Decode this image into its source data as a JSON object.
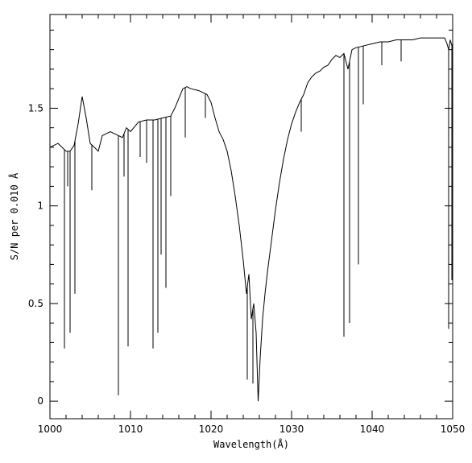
{
  "chart_data": {
    "type": "line",
    "title": "",
    "xlabel": "Wavelength(Å)",
    "ylabel": "S/N per 0.010 Å",
    "xlim": [
      1000,
      1050
    ],
    "ylim": [
      -0.09,
      1.98
    ],
    "x_ticks_major": [
      1000,
      1010,
      1020,
      1030,
      1040,
      1050
    ],
    "x_tick_labels": [
      "1000",
      "1010",
      "1020",
      "1030",
      "1040",
      "1050"
    ],
    "y_ticks_major": [
      0,
      0.5,
      1,
      1.5
    ],
    "y_tick_labels": [
      "0",
      "0.5",
      "1",
      "1.5"
    ],
    "grid": false,
    "colors": {
      "line": "#000000",
      "axes": "#000000",
      "background": "#ffffff"
    },
    "series": [
      {
        "continuum": [
          [
            1000.0,
            1.3
          ],
          [
            1001.0,
            1.32
          ],
          [
            1001.5,
            1.3
          ],
          [
            1002.0,
            1.28
          ],
          [
            1002.5,
            1.28
          ],
          [
            1003.0,
            1.31
          ],
          [
            1003.5,
            1.42
          ],
          [
            1004.0,
            1.56
          ],
          [
            1004.5,
            1.45
          ],
          [
            1005.0,
            1.32
          ],
          [
            1005.5,
            1.3
          ],
          [
            1006.0,
            1.28
          ],
          [
            1006.5,
            1.36
          ],
          [
            1007.5,
            1.38
          ],
          [
            1008.0,
            1.37
          ],
          [
            1009.0,
            1.35
          ],
          [
            1009.5,
            1.4
          ],
          [
            1010.0,
            1.38
          ],
          [
            1011.0,
            1.43
          ],
          [
            1012.0,
            1.44
          ],
          [
            1013.0,
            1.44
          ],
          [
            1014.0,
            1.45
          ],
          [
            1015.0,
            1.46
          ],
          [
            1015.5,
            1.5
          ],
          [
            1016.0,
            1.55
          ],
          [
            1016.5,
            1.6
          ],
          [
            1017.0,
            1.61
          ],
          [
            1017.5,
            1.6
          ],
          [
            1018.5,
            1.59
          ],
          [
            1019.5,
            1.57
          ],
          [
            1020.0,
            1.53
          ],
          [
            1020.5,
            1.45
          ],
          [
            1021.0,
            1.38
          ],
          [
            1021.5,
            1.34
          ],
          [
            1022.0,
            1.28
          ],
          [
            1022.5,
            1.18
          ],
          [
            1023.0,
            1.05
          ],
          [
            1023.5,
            0.9
          ],
          [
            1024.0,
            0.72
          ],
          [
            1024.4,
            0.55
          ],
          [
            1024.7,
            0.65
          ],
          [
            1025.0,
            0.42
          ],
          [
            1025.3,
            0.5
          ],
          [
            1025.6,
            0.35
          ],
          [
            1025.85,
            0.0
          ],
          [
            1026.1,
            0.22
          ],
          [
            1026.4,
            0.42
          ],
          [
            1026.7,
            0.55
          ],
          [
            1027.0,
            0.66
          ],
          [
            1027.5,
            0.82
          ],
          [
            1028.0,
            0.98
          ],
          [
            1028.5,
            1.12
          ],
          [
            1029.0,
            1.24
          ],
          [
            1029.5,
            1.34
          ],
          [
            1030.0,
            1.42
          ],
          [
            1030.5,
            1.48
          ],
          [
            1031.0,
            1.53
          ],
          [
            1031.5,
            1.57
          ],
          [
            1032.0,
            1.63
          ],
          [
            1032.5,
            1.66
          ],
          [
            1033.0,
            1.68
          ],
          [
            1033.5,
            1.69
          ],
          [
            1034.0,
            1.71
          ],
          [
            1034.5,
            1.72
          ],
          [
            1035.0,
            1.75
          ],
          [
            1035.5,
            1.77
          ],
          [
            1036.0,
            1.76
          ],
          [
            1036.5,
            1.78
          ],
          [
            1037.0,
            1.7
          ],
          [
            1037.5,
            1.8
          ],
          [
            1038.0,
            1.81
          ],
          [
            1039.0,
            1.82
          ],
          [
            1040.0,
            1.83
          ],
          [
            1041.0,
            1.84
          ],
          [
            1042.0,
            1.84
          ],
          [
            1043.0,
            1.85
          ],
          [
            1044.0,
            1.85
          ],
          [
            1045.0,
            1.85
          ],
          [
            1046.0,
            1.86
          ],
          [
            1047.0,
            1.86
          ],
          [
            1048.0,
            1.86
          ],
          [
            1049.0,
            1.86
          ],
          [
            1049.3,
            1.83
          ],
          [
            1049.5,
            1.8
          ],
          [
            1049.7,
            1.85
          ],
          [
            1049.9,
            1.82
          ],
          [
            1050.0,
            1.83
          ]
        ],
        "absorption_lines": [
          [
            1001.8,
            0.27
          ],
          [
            1002.2,
            1.1
          ],
          [
            1002.5,
            0.35
          ],
          [
            1003.1,
            0.55
          ],
          [
            1005.2,
            1.08
          ],
          [
            1008.5,
            0.03
          ],
          [
            1009.2,
            1.15
          ],
          [
            1009.7,
            0.28
          ],
          [
            1011.2,
            1.25
          ],
          [
            1012.0,
            1.22
          ],
          [
            1012.8,
            0.27
          ],
          [
            1013.4,
            0.35
          ],
          [
            1013.8,
            0.75
          ],
          [
            1014.4,
            0.58
          ],
          [
            1015.0,
            1.05
          ],
          [
            1016.8,
            1.35
          ],
          [
            1019.3,
            1.45
          ],
          [
            1024.5,
            0.11
          ],
          [
            1025.2,
            0.09
          ],
          [
            1027.8,
            0.92
          ],
          [
            1031.2,
            1.38
          ],
          [
            1036.5,
            0.33
          ],
          [
            1037.2,
            0.4
          ],
          [
            1038.3,
            0.7
          ],
          [
            1038.9,
            1.52
          ],
          [
            1041.2,
            1.72
          ],
          [
            1043.6,
            1.74
          ],
          [
            1049.5,
            0.37
          ],
          [
            1049.9,
            0.62
          ]
        ]
      }
    ]
  }
}
